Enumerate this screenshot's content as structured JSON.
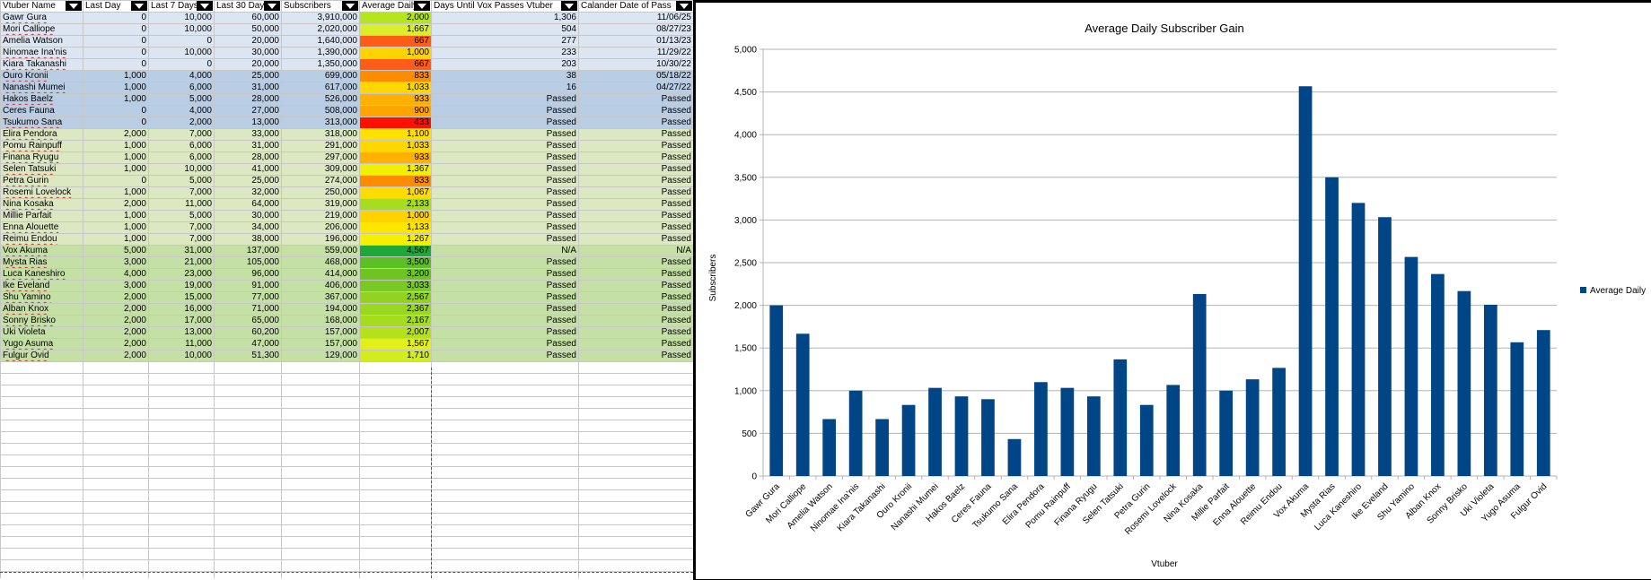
{
  "sheet": {
    "headers": [
      "Vtuber Name",
      "Last Day",
      "Last 7 Days",
      "Last 30 Days",
      "Subscribers",
      "Average Daily",
      "Days Until Vox Passes Vtuber",
      "Calander Date of Pass"
    ],
    "rows": [
      {
        "name": "Gawr Gura",
        "d1": "0",
        "d7": "10,000",
        "d30": "60,000",
        "subs": "3,910,000",
        "avg": "2,000",
        "days": "1,306",
        "date": "11/06/25",
        "bg": "#dce6f2",
        "color": "#b5e61d",
        "flag": true
      },
      {
        "name": "Mori Calliope",
        "d1": "0",
        "d7": "10,000",
        "d30": "50,000",
        "subs": "2,020,000",
        "avg": "1,667",
        "days": "504",
        "date": "08/27/23",
        "bg": "#dce6f2",
        "color": "#d9ef2a",
        "flag": true
      },
      {
        "name": "Amelia Watson",
        "d1": "0",
        "d7": "0",
        "d30": "20,000",
        "subs": "1,640,000",
        "avg": "667",
        "days": "277",
        "date": "01/13/23",
        "bg": "#dce6f2",
        "color": "#ff5c1a",
        "flag": false
      },
      {
        "name": "Ninomae Ina'nis",
        "d1": "0",
        "d7": "10,000",
        "d30": "30,000",
        "subs": "1,390,000",
        "avg": "1,000",
        "days": "233",
        "date": "11/29/22",
        "bg": "#dce6f2",
        "color": "#ffd200",
        "flag": true
      },
      {
        "name": "Kiara Takanashi",
        "d1": "0",
        "d7": "0",
        "d30": "20,000",
        "subs": "1,350,000",
        "avg": "667",
        "days": "203",
        "date": "10/30/22",
        "bg": "#dce6f2",
        "color": "#ff5c1a",
        "flag": true
      },
      {
        "name": "Ouro Kronii",
        "d1": "1,000",
        "d7": "4,000",
        "d30": "25,000",
        "subs": "699,000",
        "avg": "833",
        "days": "38",
        "date": "05/18/22",
        "bg": "#b9cde4",
        "color": "#ff8c00",
        "flag": true
      },
      {
        "name": "Nanashi Mumei",
        "d1": "1,000",
        "d7": "6,000",
        "d30": "31,000",
        "subs": "617,000",
        "avg": "1,033",
        "days": "16",
        "date": "04/27/22",
        "bg": "#b9cde4",
        "color": "#ffd700",
        "flag": true
      },
      {
        "name": "Hakos Baelz",
        "d1": "1,000",
        "d7": "5,000",
        "d30": "28,000",
        "subs": "526,000",
        "avg": "933",
        "days": "Passed",
        "date": "Passed",
        "bg": "#b9cde4",
        "color": "#ffb000",
        "flag": true
      },
      {
        "name": "Ceres Fauna",
        "d1": "0",
        "d7": "4,000",
        "d30": "27,000",
        "subs": "508,000",
        "avg": "900",
        "days": "Passed",
        "date": "Passed",
        "bg": "#b9cde4",
        "color": "#ffa500",
        "flag": false
      },
      {
        "name": "Tsukumo Sana",
        "d1": "0",
        "d7": "2,000",
        "d30": "13,000",
        "subs": "313,000",
        "avg": "433",
        "days": "Passed",
        "date": "Passed",
        "bg": "#b9cde4",
        "color": "#ff1000",
        "flag": true
      },
      {
        "name": "Elira Pendora",
        "d1": "2,000",
        "d7": "7,000",
        "d30": "33,000",
        "subs": "318,000",
        "avg": "1,100",
        "days": "Passed",
        "date": "Passed",
        "bg": "#dbe8c2",
        "color": "#ffe000",
        "flag": true
      },
      {
        "name": "Pomu Rainpuff",
        "d1": "1,000",
        "d7": "6,000",
        "d30": "31,000",
        "subs": "291,000",
        "avg": "1,033",
        "days": "Passed",
        "date": "Passed",
        "bg": "#dbe8c2",
        "color": "#ffd700",
        "flag": true
      },
      {
        "name": "Finana Ryugu",
        "d1": "1,000",
        "d7": "6,000",
        "d30": "28,000",
        "subs": "297,000",
        "avg": "933",
        "days": "Passed",
        "date": "Passed",
        "bg": "#dbe8c2",
        "color": "#ffb000",
        "flag": true
      },
      {
        "name": "Selen Tatsuki",
        "d1": "1,000",
        "d7": "10,000",
        "d30": "41,000",
        "subs": "309,000",
        "avg": "1,367",
        "days": "Passed",
        "date": "Passed",
        "bg": "#dbe8c2",
        "color": "#f0f000",
        "flag": true
      },
      {
        "name": "Petra Gurin",
        "d1": "0",
        "d7": "5,000",
        "d30": "25,000",
        "subs": "274,000",
        "avg": "833",
        "days": "Passed",
        "date": "Passed",
        "bg": "#dbe8c2",
        "color": "#ff8c00",
        "flag": true
      },
      {
        "name": "Rosemi Lovelock",
        "d1": "1,000",
        "d7": "7,000",
        "d30": "32,000",
        "subs": "250,000",
        "avg": "1,067",
        "days": "Passed",
        "date": "Passed",
        "bg": "#dbe8c2",
        "color": "#ffdc00",
        "flag": true
      },
      {
        "name": "Nina Kosaka",
        "d1": "2,000",
        "d7": "11,000",
        "d30": "64,000",
        "subs": "319,000",
        "avg": "2,133",
        "days": "Passed",
        "date": "Passed",
        "bg": "#dbe8c2",
        "color": "#a6de1e",
        "flag": true
      },
      {
        "name": "Millie Parfait",
        "d1": "1,000",
        "d7": "5,000",
        "d30": "30,000",
        "subs": "219,000",
        "avg": "1,000",
        "days": "Passed",
        "date": "Passed",
        "bg": "#dbe8c2",
        "color": "#ffd200",
        "flag": false
      },
      {
        "name": "Enna Alouette",
        "d1": "1,000",
        "d7": "7,000",
        "d30": "34,000",
        "subs": "206,000",
        "avg": "1,133",
        "days": "Passed",
        "date": "Passed",
        "bg": "#dbe8c2",
        "color": "#ffe600",
        "flag": true
      },
      {
        "name": "Reimu Endou",
        "d1": "1,000",
        "d7": "7,000",
        "d30": "38,000",
        "subs": "196,000",
        "avg": "1,267",
        "days": "Passed",
        "date": "Passed",
        "bg": "#dbe8c2",
        "color": "#f5f000",
        "flag": true
      },
      {
        "name": "Vox Akuma",
        "d1": "5,000",
        "d7": "31,000",
        "d30": "137,000",
        "subs": "559,000",
        "avg": "4,567",
        "days": "N/A",
        "date": "N/A",
        "bg": "#c5e0a5",
        "color": "#1fa83a",
        "flag": true
      },
      {
        "name": "Mysta Rias",
        "d1": "3,000",
        "d7": "21,000",
        "d30": "105,000",
        "subs": "468,000",
        "avg": "3,500",
        "days": "Passed",
        "date": "Passed",
        "bg": "#c5e0a5",
        "color": "#5cc024",
        "flag": true
      },
      {
        "name": "Luca Kaneshiro",
        "d1": "4,000",
        "d7": "23,000",
        "d30": "96,000",
        "subs": "414,000",
        "avg": "3,200",
        "days": "Passed",
        "date": "Passed",
        "bg": "#c5e0a5",
        "color": "#6ec522",
        "flag": true
      },
      {
        "name": "Ike Eveland",
        "d1": "3,000",
        "d7": "19,000",
        "d30": "91,000",
        "subs": "406,000",
        "avg": "3,033",
        "days": "Passed",
        "date": "Passed",
        "bg": "#c5e0a5",
        "color": "#79c922",
        "flag": true
      },
      {
        "name": "Shu Yamino",
        "d1": "2,000",
        "d7": "15,000",
        "d30": "77,000",
        "subs": "367,000",
        "avg": "2,567",
        "days": "Passed",
        "date": "Passed",
        "bg": "#c5e0a5",
        "color": "#92d220",
        "flag": true
      },
      {
        "name": "Alban Knox",
        "d1": "2,000",
        "d7": "16,000",
        "d30": "71,000",
        "subs": "194,000",
        "avg": "2,367",
        "days": "Passed",
        "date": "Passed",
        "bg": "#c5e0a5",
        "color": "#9ad71f",
        "flag": true
      },
      {
        "name": "Sonny Brisko",
        "d1": "2,000",
        "d7": "17,000",
        "d30": "65,000",
        "subs": "168,000",
        "avg": "2,167",
        "days": "Passed",
        "date": "Passed",
        "bg": "#c5e0a5",
        "color": "#a4dc1e",
        "flag": true
      },
      {
        "name": "Uki Violeta",
        "d1": "2,000",
        "d7": "13,000",
        "d30": "60,200",
        "subs": "157,000",
        "avg": "2,007",
        "days": "Passed",
        "date": "Passed",
        "bg": "#c5e0a5",
        "color": "#b3e21c",
        "flag": false
      },
      {
        "name": "Yugo Asuma",
        "d1": "2,000",
        "d7": "11,000",
        "d30": "47,000",
        "subs": "157,000",
        "avg": "1,567",
        "days": "Passed",
        "date": "Passed",
        "bg": "#c5e0a5",
        "color": "#e2f01a",
        "flag": true
      },
      {
        "name": "Fulgur Ovid",
        "d1": "2,000",
        "d7": "10,000",
        "d30": "51,300",
        "subs": "129,000",
        "avg": "1,710",
        "days": "Passed",
        "date": "Passed",
        "bg": "#c5e0a5",
        "color": "#d3ec1c",
        "flag": true
      }
    ],
    "empty_rows": 19
  },
  "chart_data": {
    "type": "bar",
    "title": "Average Daily Subscriber Gain",
    "xlabel": "Vtuber",
    "ylabel": "Subscribers",
    "legend": {
      "entries": [
        "Average Daily"
      ],
      "placement": "right"
    },
    "bar_color": "#004586",
    "ylim": [
      0,
      5000
    ],
    "yticks": [
      0,
      500,
      1000,
      1500,
      2000,
      2500,
      3000,
      3500,
      4000,
      4500,
      5000
    ],
    "ytick_labels": [
      "0",
      "500",
      "1,000",
      "1,500",
      "2,000",
      "2,500",
      "3,000",
      "3,500",
      "4,000",
      "4,500",
      "5,000"
    ],
    "grid": true,
    "categories": [
      "Gawr Gura",
      "Mori Calliope",
      "Amelia Watson",
      "Ninomae Ina'nis",
      "Kiara Takanashi",
      "Ouro Kronii",
      "Nanashi Mumei",
      "Hakos Baelz",
      "Ceres Fauna",
      "Tsukumo Sana",
      "Elira Pendora",
      "Pomu Rainpuff",
      "Finana Ryugu",
      "Selen Tatsuki",
      "Petra Gurin",
      "Rosemi Lovelock",
      "Nina Kosaka",
      "Millie Parfait",
      "Enna Alouette",
      "Reimu Endou",
      "Vox Akuma",
      "Mysta Rias",
      "Luca Kaneshiro",
      "Ike Eveland",
      "Shu Yamino",
      "Alban Knox",
      "Sonny Brisko",
      "Uki Violeta",
      "Yugo Asuma",
      "Fulgur Ovid"
    ],
    "series": [
      {
        "name": "Average Daily",
        "values": [
          2000,
          1667,
          667,
          1000,
          667,
          833,
          1033,
          933,
          900,
          433,
          1100,
          1033,
          933,
          1367,
          833,
          1067,
          2133,
          1000,
          1133,
          1267,
          4567,
          3500,
          3200,
          3033,
          2567,
          2367,
          2167,
          2007,
          1567,
          1710
        ]
      }
    ]
  }
}
